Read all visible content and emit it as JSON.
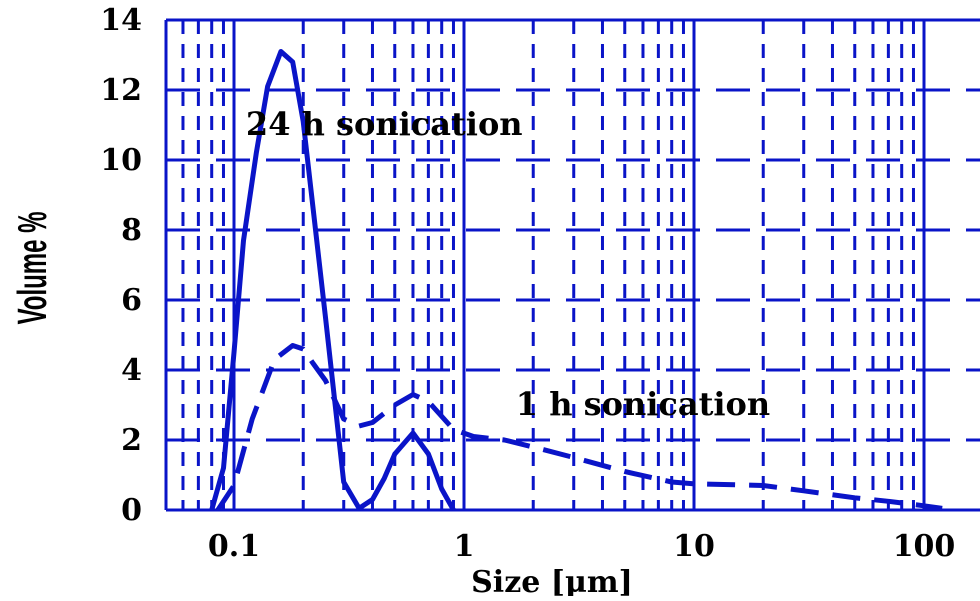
{
  "chart_data": {
    "type": "line",
    "xscale": "log",
    "xlim": [
      0.05,
      120
    ],
    "ylim": [
      0,
      14
    ],
    "xlabel": "Size [µm]",
    "ylabel": "Volume %",
    "x_ticks": [
      0.1,
      1,
      10,
      100
    ],
    "x_tick_labels": [
      "0.1",
      "1",
      "10",
      "100"
    ],
    "y_ticks": [
      0,
      2,
      4,
      6,
      8,
      10,
      12,
      14
    ],
    "y_tick_labels": [
      "0",
      "2",
      "4",
      "6",
      "8",
      "10",
      "12",
      "14"
    ],
    "grid": "major solid, minor dashed",
    "line_color": "#0a14c8",
    "annotations": [
      {
        "text": "24 h sonication",
        "x": 0.45,
        "y": 11
      },
      {
        "text": "1 h sonication",
        "x": 6,
        "y": 3
      }
    ],
    "series": [
      {
        "style": "solid",
        "x": [
          0.08,
          0.09,
          0.1,
          0.11,
          0.125,
          0.14,
          0.16,
          0.18,
          0.2,
          0.25,
          0.3,
          0.35,
          0.4,
          0.45,
          0.5,
          0.6,
          0.7,
          0.8,
          0.9
        ],
        "values": [
          0,
          1.2,
          4.5,
          7.7,
          10.2,
          12.1,
          13.1,
          12.8,
          11.1,
          5.5,
          0.8,
          0.05,
          0.3,
          0.9,
          1.6,
          2.2,
          1.6,
          0.6,
          0
        ]
      },
      {
        "style": "dashed",
        "x": [
          0.085,
          0.1,
          0.12,
          0.15,
          0.18,
          0.2,
          0.22,
          0.25,
          0.3,
          0.35,
          0.4,
          0.5,
          0.6,
          0.7,
          0.9,
          1.1,
          1.5,
          2,
          3,
          5,
          8,
          10,
          20,
          30,
          50,
          70,
          100,
          120
        ],
        "values": [
          0,
          0.7,
          2.6,
          4.3,
          4.7,
          4.6,
          4.2,
          3.7,
          2.6,
          2.4,
          2.5,
          3.0,
          3.3,
          3.1,
          2.3,
          2.1,
          2.0,
          1.8,
          1.5,
          1.1,
          0.8,
          0.75,
          0.7,
          0.55,
          0.35,
          0.25,
          0.12,
          0.05
        ]
      }
    ]
  }
}
